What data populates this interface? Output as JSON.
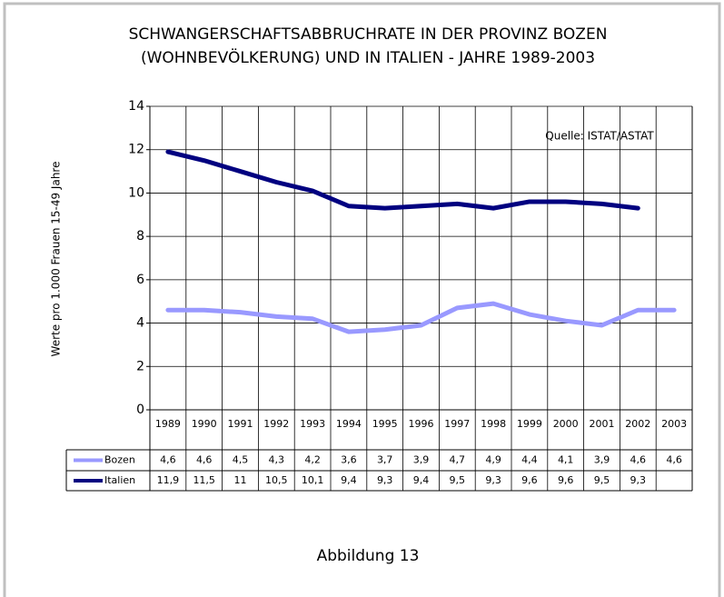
{
  "chart_data": {
    "type": "line",
    "title": "SCHWANGERSCHAFTSABBRUCHRATE IN DER PROVINZ BOZEN",
    "subtitle": "(WOHNBEVÖLKERUNG) UND IN ITALIEN - JAHRE 1989-2003",
    "y_label": "Werte pro 1.000 Frauen 15-49 Jahre",
    "annotation": "Quelle: ISTAT/ASTAT",
    "caption": "Abbildung 13",
    "categories": [
      "1989",
      "1990",
      "1991",
      "1992",
      "1993",
      "1994",
      "1995",
      "1996",
      "1997",
      "1998",
      "1999",
      "2000",
      "2001",
      "2002",
      "2003"
    ],
    "series": [
      {
        "name": "Bozen",
        "color": "#9999ff",
        "values": [
          4.6,
          4.6,
          4.5,
          4.3,
          4.2,
          3.6,
          3.7,
          3.9,
          4.7,
          4.9,
          4.4,
          4.1,
          3.9,
          4.6,
          4.6
        ],
        "value_labels": [
          "4,6",
          "4,6",
          "4,5",
          "4,3",
          "4,2",
          "3,6",
          "3,7",
          "3,9",
          "4,7",
          "4,9",
          "4,4",
          "4,1",
          "3,9",
          "4,6",
          "4,6"
        ]
      },
      {
        "name": "Italien",
        "color": "#000080",
        "values": [
          11.9,
          11.5,
          11,
          10.5,
          10.1,
          9.4,
          9.3,
          9.4,
          9.5,
          9.3,
          9.6,
          9.6,
          9.5,
          9.3,
          null
        ],
        "value_labels": [
          "11,9",
          "11,5",
          "11",
          "10,5",
          "10,1",
          "9,4",
          "9,3",
          "9,4",
          "9,5",
          "9,3",
          "9,6",
          "9,6",
          "9,5",
          "9,3",
          null
        ]
      }
    ],
    "ylim": [
      0,
      14
    ],
    "yticks": [
      0,
      2,
      4,
      6,
      8,
      10,
      12,
      14
    ],
    "grid": true
  }
}
